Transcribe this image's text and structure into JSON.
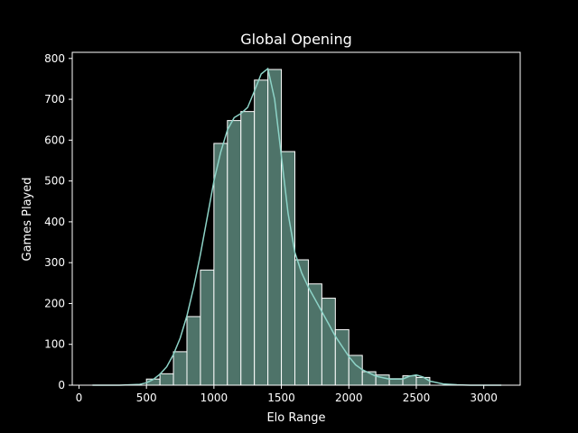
{
  "chart_data": {
    "type": "bar",
    "subtype": "histogram",
    "title": "Global Opening",
    "xlabel": "Elo Range",
    "ylabel": "Games Played",
    "xlim": [
      -50,
      3270
    ],
    "ylim": [
      0,
      815
    ],
    "xticks": [
      0,
      500,
      1000,
      1500,
      2000,
      2500,
      3000
    ],
    "yticks": [
      0,
      100,
      200,
      300,
      400,
      500,
      600,
      700,
      800
    ],
    "grid": false,
    "legend": "none",
    "colors": {
      "background": "#000000",
      "bar_fill": "#4e7369",
      "bar_edge": "#ffffff",
      "kde_line": "#8dd3c7",
      "axes": "#ffffff"
    },
    "bins": [
      {
        "start": 100,
        "end": 200,
        "value": 0
      },
      {
        "start": 200,
        "end": 300,
        "value": 0
      },
      {
        "start": 300,
        "end": 400,
        "value": 0
      },
      {
        "start": 400,
        "end": 500,
        "value": 0
      },
      {
        "start": 500,
        "end": 600,
        "value": 15
      },
      {
        "start": 600,
        "end": 700,
        "value": 28
      },
      {
        "start": 700,
        "end": 800,
        "value": 82
      },
      {
        "start": 800,
        "end": 900,
        "value": 168
      },
      {
        "start": 900,
        "end": 1000,
        "value": 282
      },
      {
        "start": 1000,
        "end": 1100,
        "value": 592
      },
      {
        "start": 1100,
        "end": 1200,
        "value": 648
      },
      {
        "start": 1200,
        "end": 1300,
        "value": 670
      },
      {
        "start": 1300,
        "end": 1400,
        "value": 747
      },
      {
        "start": 1400,
        "end": 1500,
        "value": 773
      },
      {
        "start": 1500,
        "end": 1600,
        "value": 572
      },
      {
        "start": 1600,
        "end": 1700,
        "value": 307
      },
      {
        "start": 1700,
        "end": 1800,
        "value": 248
      },
      {
        "start": 1800,
        "end": 1900,
        "value": 213
      },
      {
        "start": 1900,
        "end": 2000,
        "value": 136
      },
      {
        "start": 2000,
        "end": 2100,
        "value": 73
      },
      {
        "start": 2100,
        "end": 2200,
        "value": 33
      },
      {
        "start": 2200,
        "end": 2300,
        "value": 25
      },
      {
        "start": 2300,
        "end": 2400,
        "value": 16
      },
      {
        "start": 2400,
        "end": 2500,
        "value": 23
      },
      {
        "start": 2500,
        "end": 2600,
        "value": 19
      },
      {
        "start": 2600,
        "end": 2700,
        "value": 0
      },
      {
        "start": 2700,
        "end": 2800,
        "value": 0
      },
      {
        "start": 2800,
        "end": 2900,
        "value": 0
      },
      {
        "start": 2900,
        "end": 3000,
        "value": 0
      },
      {
        "start": 3000,
        "end": 3100,
        "value": 0
      }
    ],
    "kde": {
      "x": [
        100,
        300,
        450,
        500,
        550,
        600,
        650,
        700,
        750,
        800,
        850,
        900,
        950,
        1000,
        1050,
        1100,
        1150,
        1200,
        1250,
        1300,
        1350,
        1400,
        1450,
        1500,
        1550,
        1600,
        1650,
        1700,
        1750,
        1800,
        1850,
        1900,
        1950,
        2000,
        2050,
        2100,
        2200,
        2300,
        2400,
        2450,
        2500,
        2550,
        2600,
        2700,
        2800,
        2900,
        3000,
        3130
      ],
      "y": [
        0,
        0,
        2,
        6,
        14,
        27,
        45,
        75,
        115,
        170,
        240,
        320,
        410,
        500,
        570,
        625,
        655,
        665,
        680,
        720,
        762,
        775,
        700,
        560,
        420,
        325,
        275,
        240,
        210,
        180,
        150,
        120,
        95,
        70,
        50,
        38,
        22,
        15,
        15,
        22,
        25,
        20,
        10,
        3,
        1,
        0,
        0,
        0
      ]
    }
  }
}
